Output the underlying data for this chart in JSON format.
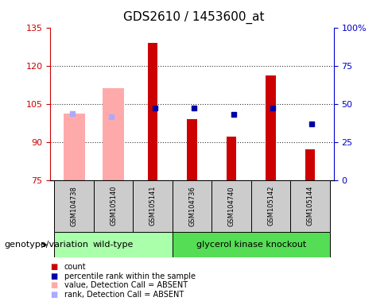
{
  "title": "GDS2610 / 1453600_at",
  "samples": [
    "GSM104738",
    "GSM105140",
    "GSM105141",
    "GSM104736",
    "GSM104740",
    "GSM105142",
    "GSM105144"
  ],
  "count_values": [
    null,
    null,
    129,
    99,
    92,
    116,
    87
  ],
  "percentile_rank_left": [
    null,
    null,
    47,
    47,
    43,
    47,
    37
  ],
  "absent_value": [
    101,
    111,
    null,
    null,
    null,
    null,
    null
  ],
  "absent_rank_left": [
    101,
    100,
    null,
    null,
    null,
    null,
    null
  ],
  "ylim_left": [
    75,
    135
  ],
  "ylim_right": [
    0,
    100
  ],
  "yticks_left": [
    75,
    90,
    105,
    120,
    135
  ],
  "yticks_right": [
    0,
    25,
    50,
    75,
    100
  ],
  "ytick_labels_right": [
    "0",
    "25",
    "50",
    "75",
    "100%"
  ],
  "bar_bottom": 75,
  "color_count": "#cc0000",
  "color_rank": "#0000aa",
  "color_absent_value": "#ffaaaa",
  "color_absent_rank": "#aaaaff",
  "color_wt_bg": "#aaffaa",
  "color_gk_bg": "#55dd55",
  "color_sample_bg": "#cccccc",
  "group_label": "genotype/variation",
  "wt_label": "wild-type",
  "gk_label": "glycerol kinase knockout",
  "legend_items": [
    {
      "label": "count",
      "color": "#cc0000"
    },
    {
      "label": "percentile rank within the sample",
      "color": "#0000aa"
    },
    {
      "label": "value, Detection Call = ABSENT",
      "color": "#ffaaaa"
    },
    {
      "label": "rank, Detection Call = ABSENT",
      "color": "#aaaaff"
    }
  ]
}
